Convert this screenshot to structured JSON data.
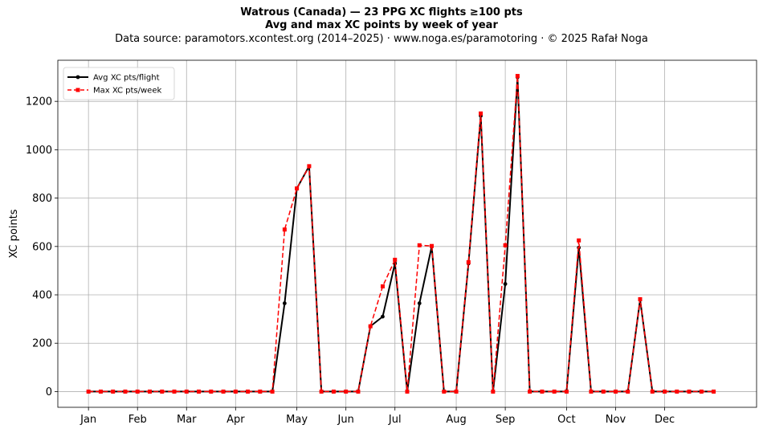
{
  "chart_data": {
    "type": "line",
    "title": "Watrous (Canada)  —  23 PPG XC flights ≥100 pts",
    "subtitle": "Avg and max XC points by week of year",
    "source": "Data source: paramotors.xcontest.org (2014–2025)  ·  www.noga.es/paramotoring  ·  © 2025 Rafał Noga",
    "xlabel": "",
    "ylabel": "XC points",
    "xlim": [
      -1.5,
      55.5
    ],
    "ylim": [
      -65,
      1370
    ],
    "yticks": [
      0,
      200,
      400,
      600,
      800,
      1000,
      1200
    ],
    "xticks": [
      {
        "week": 1,
        "label": "Jan"
      },
      {
        "week": 5,
        "label": "Feb"
      },
      {
        "week": 9,
        "label": "Mar"
      },
      {
        "week": 13,
        "label": "Apr"
      },
      {
        "week": 18,
        "label": "May"
      },
      {
        "week": 22,
        "label": "Jun"
      },
      {
        "week": 26,
        "label": "Jul"
      },
      {
        "week": 31,
        "label": "Aug"
      },
      {
        "week": 35,
        "label": "Sep"
      },
      {
        "week": 40,
        "label": "Oct"
      },
      {
        "week": 44,
        "label": "Nov"
      },
      {
        "week": 48,
        "label": "Dec"
      }
    ],
    "grid": true,
    "legend_position": "top-left",
    "x": [
      1,
      2,
      3,
      4,
      5,
      6,
      7,
      8,
      9,
      10,
      11,
      12,
      13,
      14,
      15,
      16,
      17,
      18,
      19,
      20,
      21,
      22,
      23,
      24,
      25,
      26,
      27,
      28,
      29,
      30,
      31,
      32,
      33,
      34,
      35,
      36,
      37,
      38,
      39,
      40,
      41,
      42,
      43,
      44,
      45,
      46,
      47,
      48,
      49,
      50,
      51,
      52
    ],
    "series": [
      {
        "name": "Avg XC pts/flight",
        "color": "#000000",
        "style": "solid",
        "marker": "circle",
        "values": [
          0,
          0,
          0,
          0,
          0,
          0,
          0,
          0,
          0,
          0,
          0,
          0,
          0,
          0,
          0,
          0,
          365,
          840,
          932,
          0,
          0,
          0,
          0,
          270,
          310,
          530,
          0,
          365,
          600,
          0,
          0,
          530,
          1140,
          0,
          445,
          1300,
          0,
          0,
          0,
          0,
          595,
          0,
          0,
          0,
          0,
          380,
          0,
          0,
          0,
          0,
          0,
          0
        ]
      },
      {
        "name": "Max XC pts/week",
        "color": "#ff0000",
        "style": "dashed",
        "marker": "square",
        "values": [
          0,
          0,
          0,
          0,
          0,
          0,
          0,
          0,
          0,
          0,
          0,
          0,
          0,
          0,
          0,
          0,
          670,
          840,
          932,
          0,
          0,
          0,
          0,
          270,
          435,
          545,
          0,
          605,
          602,
          0,
          0,
          535,
          1150,
          0,
          605,
          1305,
          0,
          0,
          0,
          0,
          625,
          0,
          0,
          0,
          0,
          382,
          0,
          0,
          0,
          0,
          0,
          0
        ]
      }
    ]
  }
}
